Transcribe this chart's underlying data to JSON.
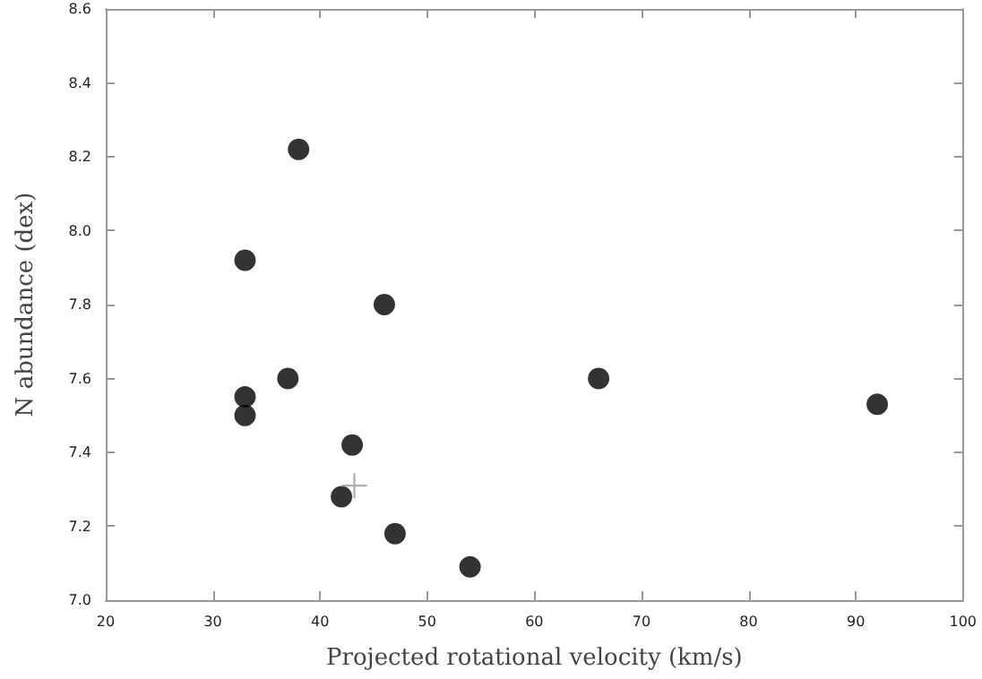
{
  "chart_data": {
    "type": "scatter",
    "xlabel": "Projected rotational velocity (km/s)",
    "ylabel": "N abundance (dex)",
    "xlim": [
      20,
      100
    ],
    "xticks": [
      20,
      30,
      40,
      50,
      60,
      70,
      80,
      90,
      100
    ],
    "ylim": [
      7.0,
      8.6
    ],
    "yticks": [
      {
        "value": 7.0,
        "label": "7.0"
      },
      7.2,
      7.4,
      7.6,
      7.8,
      {
        "value": 8.0,
        "label": "8.0"
      },
      8.2,
      8.4,
      8.6
    ],
    "grid": false,
    "series": [
      {
        "color": "#000000",
        "marker": "circle",
        "x": [
          33,
          38,
          46,
          37,
          33,
          33,
          43,
          42,
          47,
          54,
          66,
          92
        ],
        "values": [
          7.92,
          8.22,
          7.8,
          7.6,
          7.55,
          7.5,
          7.42,
          7.28,
          7.18,
          7.09,
          7.6,
          7.53
        ]
      },
      {
        "color": "#999999",
        "marker": "cross",
        "x": [
          43.2
        ],
        "values": [
          7.31
        ]
      }
    ]
  }
}
